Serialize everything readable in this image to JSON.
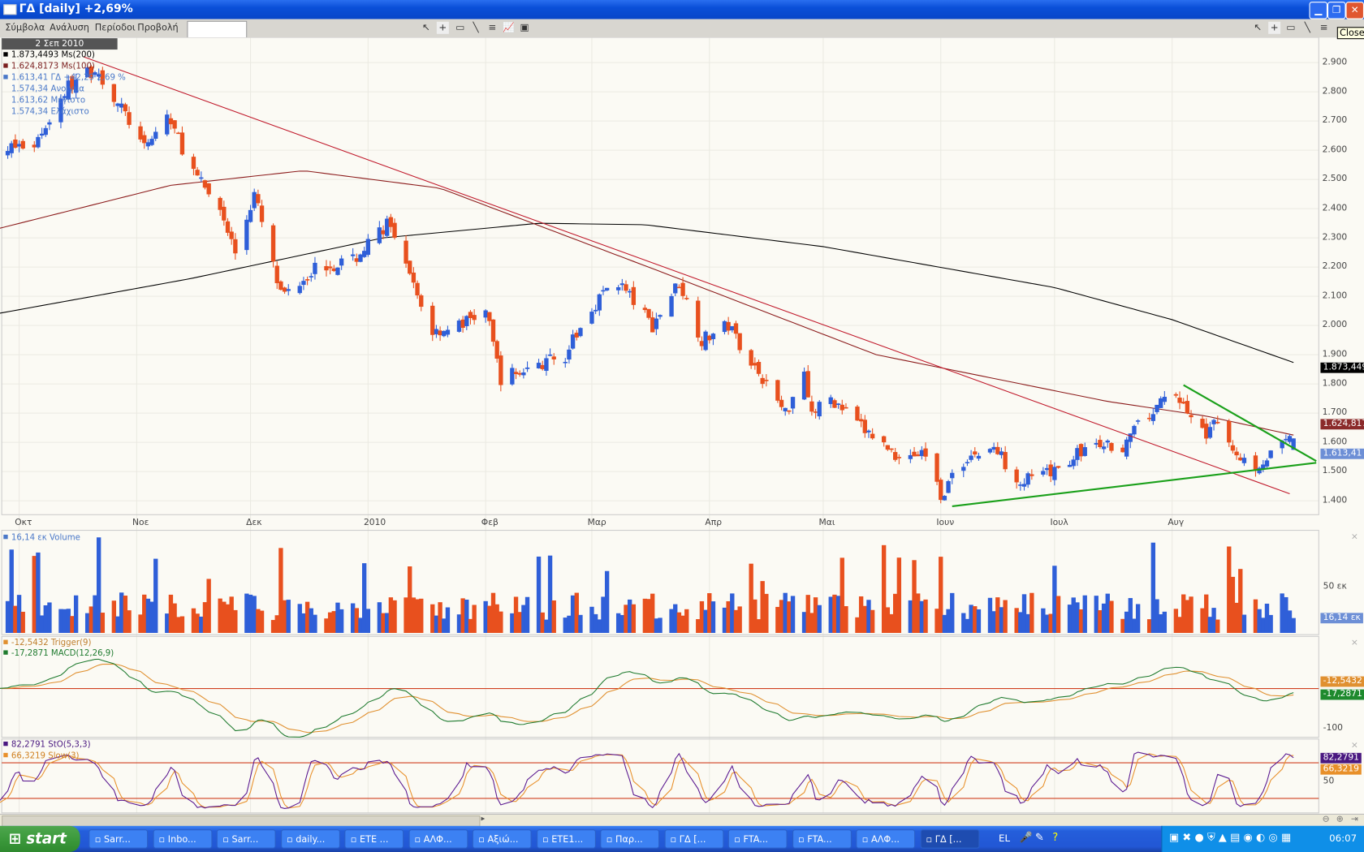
{
  "window": {
    "title": "ΓΔ [daily] +2,69%"
  },
  "menu": [
    "Σύμβολα",
    "Ανάλυση",
    "Περίοδοι",
    "Προβολή"
  ],
  "symbol_input": "",
  "tooltip": "Close",
  "colors": {
    "up": "#2f5fd8",
    "down": "#e8501e",
    "ma200": "#000000",
    "ma100": "#8b1a1a",
    "trendline_red": "#c0182a",
    "trendline_green": "#1aa01a",
    "macd": "#1e7a2e",
    "trigger": "#e09030",
    "stoch": "#5a1890",
    "slow": "#e8902a",
    "level": "#d04020"
  },
  "price_panel": {
    "date": "2 Σεπ 2010",
    "legend": [
      {
        "text": "1.873,4493 Ms(200)",
        "color": "#000000"
      },
      {
        "text": "1.624,8173 Ms(100)",
        "color": "#7a1e1e"
      },
      {
        "text": "1.613,41 ΓΔ +42,29 2,69 %",
        "color": "#4a78c8"
      }
    ],
    "info": [
      "1.574,34 Ανοιγμα",
      "1.613,62 Μέγιστο",
      "1.574,34 Ελάχιστο"
    ],
    "axis_ticks": [
      "2.900",
      "2.800",
      "2.700",
      "2.600",
      "2.500",
      "2.400",
      "2.300",
      "2.200",
      "2.100",
      "2.000",
      "1.900",
      "1.800",
      "1.700",
      "1.600",
      "1.500",
      "1.400"
    ],
    "ma200_tag": "1.873,449",
    "ma100_tag": "1.624,817",
    "price_tag": "1.613,41"
  },
  "time_axis": [
    "Οκτ",
    "Νοε",
    "Δεκ",
    "2010",
    "Φεβ",
    "Μαρ",
    "Απρ",
    "Μαι",
    "Ιουν",
    "Ιουλ",
    "Αυγ"
  ],
  "volume_panel": {
    "legend": "16,14 εκ Volume",
    "tick": "50 εκ",
    "tag": "16,14 εκ"
  },
  "macd_panel": {
    "legend": [
      {
        "text": "-12,5432 Trigger(9)",
        "color": "#c08030"
      },
      {
        "text": "-17,2871 MACD(12,26,9)",
        "color": "#1e7a2e"
      }
    ],
    "tick": "-100",
    "tag": "-17,2871",
    "trigger_tag": "-12,5432"
  },
  "stoch_panel": {
    "legend": [
      {
        "text": "82,2791 StO(5,3,3)",
        "color": "#4a1880"
      },
      {
        "text": "66,3219 Slow(3)",
        "color": "#d08020"
      }
    ],
    "tick": "50",
    "tag": "82,2791",
    "slow_tag": "66,3219"
  },
  "taskbar": {
    "start": "start",
    "items": [
      "Sarr...",
      "Inbo...",
      "Sarr...",
      "daily...",
      "ETE ...",
      "ΑΛΦ...",
      "Αξιώ...",
      "ETE1...",
      "Παρ...",
      "ΓΔ [...",
      "FTA...",
      "FTA...",
      "ΑΛΦ...",
      "ΓΔ [..."
    ],
    "active": 13,
    "lang": "EL",
    "clock": "06:07"
  },
  "chart_data": {
    "type": "candlestick",
    "symbol": "ΓΔ",
    "period": "daily",
    "ylim": [
      1350,
      2950
    ],
    "last": {
      "date": "2010-09-02",
      "open": 1574.34,
      "high": 1613.62,
      "low": 1574.34,
      "close": 1613.41,
      "change": 42.29,
      "change_pct": 2.69,
      "volume_mln": 16.14
    },
    "close_path": [
      [
        "2009-09-25",
        2600
      ],
      [
        "2009-10-05",
        2620
      ],
      [
        "2009-10-14",
        2820
      ],
      [
        "2009-10-21",
        2880
      ],
      [
        "2009-10-30",
        2700
      ],
      [
        "2009-11-03",
        2600
      ],
      [
        "2009-11-09",
        2720
      ],
      [
        "2009-11-17",
        2500
      ],
      [
        "2009-11-23",
        2400
      ],
      [
        "2009-11-27",
        2250
      ],
      [
        "2009-12-02",
        2450
      ],
      [
        "2009-12-09",
        2100
      ],
      [
        "2009-12-18",
        2200
      ],
      [
        "2009-12-28",
        2220
      ],
      [
        "2010-01-06",
        2350
      ],
      [
        "2010-01-14",
        2100
      ],
      [
        "2010-01-18",
        1980
      ],
      [
        "2010-01-25",
        2000
      ],
      [
        "2010-02-01",
        2050
      ],
      [
        "2010-02-05",
        1820
      ],
      [
        "2010-02-12",
        1850
      ],
      [
        "2010-02-22",
        1900
      ],
      [
        "2010-03-03",
        2100
      ],
      [
        "2010-03-08",
        2150
      ],
      [
        "2010-03-17",
        2000
      ],
      [
        "2010-03-24",
        2150
      ],
      [
        "2010-03-30",
        1950
      ],
      [
        "2010-04-06",
        2000
      ],
      [
        "2010-04-15",
        1820
      ],
      [
        "2010-04-21",
        1700
      ],
      [
        "2010-04-26",
        1850
      ],
      [
        "2010-04-28",
        1700
      ],
      [
        "2010-05-03",
        1750
      ],
      [
        "2010-05-11",
        1650
      ],
      [
        "2010-05-20",
        1560
      ],
      [
        "2010-05-28",
        1560
      ],
      [
        "2010-06-01",
        1420
      ],
      [
        "2010-06-08",
        1550
      ],
      [
        "2010-06-15",
        1580
      ],
      [
        "2010-06-22",
        1470
      ],
      [
        "2010-06-30",
        1490
      ],
      [
        "2010-07-09",
        1580
      ],
      [
        "2010-07-19",
        1590
      ],
      [
        "2010-07-27",
        1710
      ],
      [
        "2010-08-02",
        1770
      ],
      [
        "2010-08-09",
        1630
      ],
      [
        "2010-08-13",
        1660
      ],
      [
        "2010-08-19",
        1550
      ],
      [
        "2010-08-23",
        1520
      ],
      [
        "2010-09-02",
        1613.41
      ]
    ],
    "ma200": [
      [
        "2009-09-25",
        2040
      ],
      [
        "2009-11-15",
        2160
      ],
      [
        "2010-01-05",
        2300
      ],
      [
        "2010-02-15",
        2350
      ],
      [
        "2010-03-15",
        2345
      ],
      [
        "2010-05-01",
        2270
      ],
      [
        "2010-07-01",
        2130
      ],
      [
        "2010-08-01",
        2020
      ],
      [
        "2010-09-02",
        1873.45
      ]
    ],
    "ma100": [
      [
        "2009-09-25",
        2330
      ],
      [
        "2009-11-10",
        2480
      ],
      [
        "2009-12-15",
        2530
      ],
      [
        "2010-01-20",
        2470
      ],
      [
        "2010-03-20",
        2180
      ],
      [
        "2010-05-15",
        1900
      ],
      [
        "2010-07-15",
        1740
      ],
      [
        "2010-08-10",
        1690
      ],
      [
        "2010-09-02",
        1624.82
      ]
    ],
    "trendlines": [
      {
        "color": "red",
        "from": [
          "2009-10-18",
          2920
        ],
        "to": [
          "2010-09-01",
          1424
        ]
      },
      {
        "color": "green",
        "from": [
          "2010-06-04",
          1381
        ],
        "to": [
          "2010-09-08",
          1530
        ]
      },
      {
        "color": "green",
        "from": [
          "2010-08-04",
          1796
        ],
        "to": [
          "2010-09-08",
          1536
        ]
      }
    ],
    "stoch_levels": [
      80,
      20
    ]
  }
}
